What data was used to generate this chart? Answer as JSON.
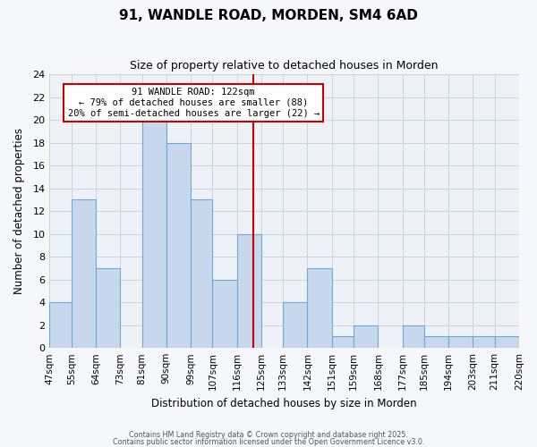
{
  "title": "91, WANDLE ROAD, MORDEN, SM4 6AD",
  "subtitle": "Size of property relative to detached houses in Morden",
  "xlabel": "Distribution of detached houses by size in Morden",
  "ylabel": "Number of detached properties",
  "bin_labels": [
    "47sqm",
    "55sqm",
    "64sqm",
    "73sqm",
    "81sqm",
    "90sqm",
    "99sqm",
    "107sqm",
    "116sqm",
    "125sqm",
    "133sqm",
    "142sqm",
    "151sqm",
    "159sqm",
    "168sqm",
    "177sqm",
    "185sqm",
    "194sqm",
    "203sqm",
    "211sqm",
    "220sqm"
  ],
  "bin_edges": [
    47,
    55,
    64,
    73,
    81,
    90,
    99,
    107,
    116,
    125,
    133,
    142,
    151,
    159,
    168,
    177,
    185,
    194,
    203,
    211,
    220
  ],
  "bar_values": [
    4,
    13,
    7,
    0,
    20,
    18,
    13,
    6,
    10,
    0,
    4,
    7,
    1,
    2,
    0,
    2,
    1,
    1,
    1,
    1
  ],
  "ylim": [
    0,
    24
  ],
  "yticks": [
    0,
    2,
    4,
    6,
    8,
    10,
    12,
    14,
    16,
    18,
    20,
    22,
    24
  ],
  "bar_color": "#c8d8ec",
  "bar_edge_color": "#6aaad4",
  "grid_color": "#ccd4de",
  "bg_color": "#eef2f7",
  "fig_bg_color": "#f5f7fa",
  "vline_x": 122,
  "vline_color": "#cc0000",
  "annotation_title": "91 WANDLE ROAD: 122sqm",
  "annotation_line1": "← 79% of detached houses are smaller (88)",
  "annotation_line2": "20% of semi-detached houses are larger (22) →",
  "annotation_box_edge": "#cc0000",
  "footer1": "Contains HM Land Registry data © Crown copyright and database right 2025.",
  "footer2": "Contains public sector information licensed under the Open Government Licence v3.0."
}
